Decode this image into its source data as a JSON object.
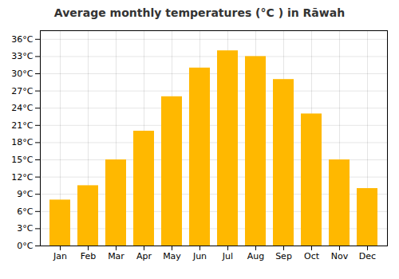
{
  "chart_data": {
    "type": "bar",
    "title": "Average monthly temperatures (°C ) in Rāwah",
    "categories": [
      "Jan",
      "Feb",
      "Mar",
      "Apr",
      "May",
      "Jun",
      "Jul",
      "Aug",
      "Sep",
      "Oct",
      "Nov",
      "Dec"
    ],
    "values": [
      8.0,
      10.5,
      15.0,
      20.0,
      26.0,
      31.0,
      34.0,
      33.0,
      29.0,
      23.0,
      15.0,
      10.0
    ],
    "color": "#FFB800",
    "ylim": [
      0,
      37.5
    ],
    "yticks": [
      {
        "value": 0,
        "label": "0°C"
      },
      {
        "value": 3,
        "label": "3°C"
      },
      {
        "value": 6,
        "label": "6°C"
      },
      {
        "value": 9,
        "label": "9°C"
      },
      {
        "value": 12,
        "label": "12°C"
      },
      {
        "value": 15,
        "label": "15°C"
      },
      {
        "value": 18,
        "label": "18°C"
      },
      {
        "value": 21,
        "label": "21°C"
      },
      {
        "value": 24,
        "label": "24°C"
      },
      {
        "value": 27,
        "label": "27°C"
      },
      {
        "value": 30,
        "label": "30°C"
      },
      {
        "value": 33,
        "label": "33°C"
      },
      {
        "value": 36,
        "label": "36°C"
      }
    ],
    "grid": true
  }
}
